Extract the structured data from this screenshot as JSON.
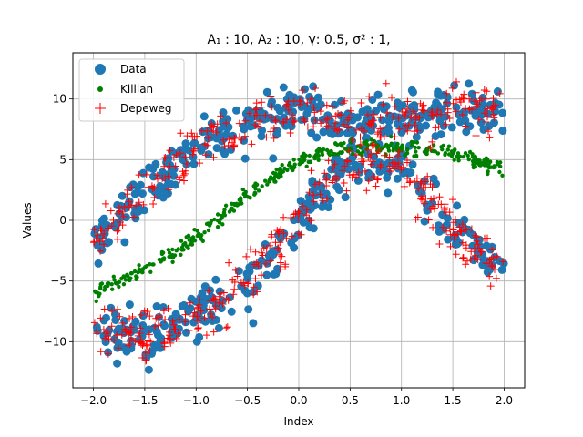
{
  "chart_data": {
    "type": "scatter",
    "title": "A₁ : 10, A₂ : 10, γ: 0.5, σ² : 1,",
    "xlabel": "Index",
    "ylabel": "Values",
    "xlim": [
      -2.2,
      2.2
    ],
    "ylim": [
      -13.8,
      13.8
    ],
    "xticks": [
      -2.0,
      -1.5,
      -1.0,
      -0.5,
      0.0,
      0.5,
      1.0,
      1.5,
      2.0
    ],
    "xtick_labels": [
      "−2.0",
      "−1.5",
      "−1.0",
      "−0.5",
      "0.0",
      "0.5",
      "1.0",
      "1.5",
      "2.0"
    ],
    "yticks": [
      -10,
      -5,
      0,
      5,
      10
    ],
    "ytick_labels": [
      "−10",
      "−5",
      "0",
      "5",
      "10"
    ],
    "grid": true,
    "legend_position": "top-left",
    "series": [
      {
        "name": "Data",
        "marker": "circle",
        "color": "#1f77b4"
      },
      {
        "name": "Killian",
        "marker": "dot",
        "color": "#008000"
      },
      {
        "name": "Depeweg",
        "marker": "plus",
        "color": "#ff0000"
      }
    ],
    "components": {
      "branch_upper": [
        [
          -2.0,
          -2.0
        ],
        [
          -1.5,
          2.5
        ],
        [
          -1.0,
          6.0
        ],
        [
          -0.5,
          8.0
        ],
        [
          0.0,
          9.0
        ],
        [
          0.5,
          8.0
        ],
        [
          1.0,
          8.0
        ],
        [
          1.5,
          9.0
        ],
        [
          2.0,
          9.0
        ]
      ],
      "branch_lower": [
        [
          -2.0,
          -9.0
        ],
        [
          -1.5,
          -9.5
        ],
        [
          -1.0,
          -8.0
        ],
        [
          -0.5,
          -5.0
        ],
        [
          0.0,
          0.0
        ],
        [
          0.5,
          5.0
        ],
        [
          1.0,
          4.5
        ],
        [
          1.5,
          -1.0
        ],
        [
          2.0,
          -4.0
        ]
      ],
      "killian_mean": [
        [
          -2.0,
          -6.0
        ],
        [
          -1.5,
          -4.0
        ],
        [
          -1.0,
          -1.5
        ],
        [
          -0.5,
          2.0
        ],
        [
          0.0,
          5.0
        ],
        [
          0.5,
          6.0
        ],
        [
          1.0,
          6.0
        ],
        [
          1.5,
          5.5
        ],
        [
          2.0,
          4.0
        ]
      ]
    }
  }
}
